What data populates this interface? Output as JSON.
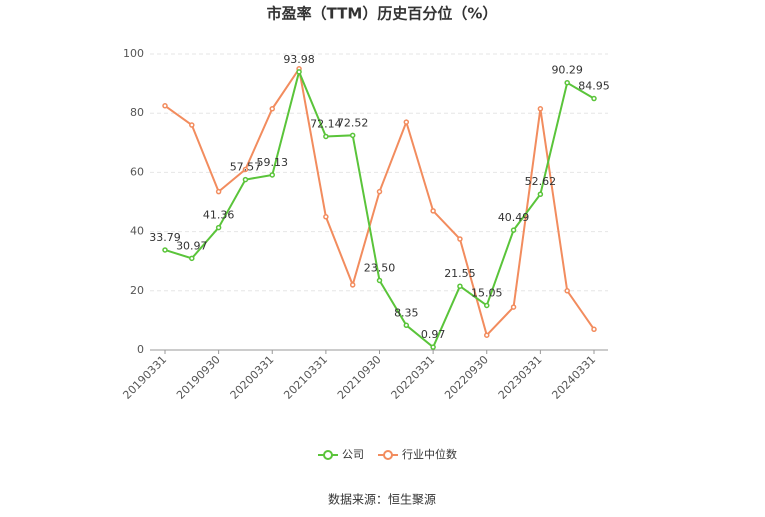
{
  "chart_data": {
    "type": "line",
    "title": "市盈率（TTM）历史百分位（%）",
    "source": "数据来源：恒生聚源",
    "categories": [
      "20190331",
      null,
      "20190930",
      null,
      "20200331",
      null,
      "20210331",
      null,
      "20210930",
      null,
      "20220331",
      null,
      "20220930",
      null,
      "20230331",
      null,
      "20240331"
    ],
    "series": [
      {
        "name": "公司",
        "color": "#5ac43a",
        "values": [
          33.79,
          30.97,
          41.36,
          57.57,
          59.13,
          93.98,
          72.14,
          72.52,
          23.5,
          8.35,
          0.97,
          21.55,
          15.05,
          40.49,
          52.62,
          90.29,
          84.95
        ],
        "value_labels": [
          "33.79",
          "30.97",
          "41.36",
          "57.57",
          "59.13",
          "93.98",
          "72.14",
          "72.52",
          "23.50",
          "8.35",
          "0.97",
          "21.55",
          "15.05",
          "40.49",
          "52.62",
          "90.29",
          "84.95"
        ]
      },
      {
        "name": "行业中位数",
        "color": "#f28c5e",
        "values": [
          82.5,
          76,
          53.5,
          61,
          81.5,
          95,
          45,
          22,
          53.5,
          77,
          47,
          37.5,
          5,
          14.5,
          81.5,
          20,
          7
        ]
      }
    ],
    "ylim": [
      0,
      100
    ],
    "yticks": [
      0,
      20,
      40,
      60,
      80,
      100
    ],
    "grid": true,
    "legend": "bottom"
  }
}
